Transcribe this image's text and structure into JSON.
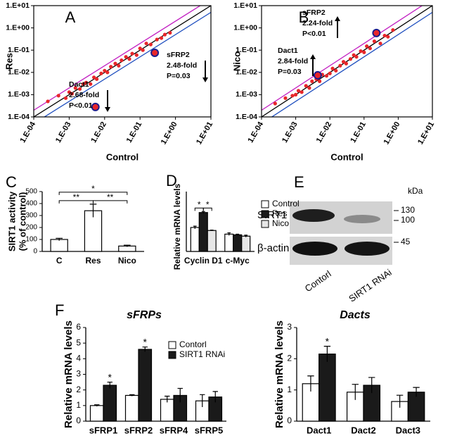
{
  "chart_data": [
    {
      "type": "scatter",
      "label": "A",
      "xlabel": "Control",
      "ylabel": "Res",
      "xscale": "log",
      "yscale": "log",
      "xlim": [
        0.0001,
        10
      ],
      "ylim": [
        0.0001,
        10
      ],
      "xticks": [
        {
          "value": 0.0001,
          "label": "1.E-04"
        },
        {
          "value": 0.001,
          "label": "1.E-03"
        },
        {
          "value": 0.01,
          "label": "1.E-02"
        },
        {
          "value": 0.1,
          "label": "1.E-01"
        },
        {
          "value": 1,
          "label": "1.E+00"
        },
        {
          "value": 10,
          "label": "1.E+01"
        }
      ],
      "yticks": [
        {
          "value": 0.0001,
          "label": "1.E-04"
        },
        {
          "value": 0.001,
          "label": "1.E-03"
        },
        {
          "value": 0.01,
          "label": "1.E-02"
        },
        {
          "value": 0.1,
          "label": "1.E-01"
        },
        {
          "value": 1,
          "label": "1.E+00"
        },
        {
          "value": 10,
          "label": "1.E+01"
        }
      ],
      "x": [
        0.00025,
        0.0005,
        0.0008,
        0.001,
        0.0012,
        0.0015,
        0.002,
        0.0025,
        0.003,
        0.004,
        0.005,
        0.006,
        0.008,
        0.01,
        0.012,
        0.015,
        0.02,
        0.025,
        0.03,
        0.04,
        0.05,
        0.06,
        0.08,
        0.1,
        0.12,
        0.15,
        0.2,
        0.3,
        0.4,
        0.5,
        0.7
      ],
      "y": [
        0.0005,
        0.0009,
        0.0007,
        0.0013,
        0.0011,
        0.002,
        0.0018,
        0.003,
        0.0035,
        0.003,
        0.006,
        0.005,
        0.009,
        0.012,
        0.01,
        0.018,
        0.025,
        0.02,
        0.035,
        0.05,
        0.04,
        0.07,
        0.06,
        0.12,
        0.1,
        0.2,
        0.18,
        0.3,
        0.35,
        0.5,
        0.6
      ],
      "color": "#e8262a",
      "highlighted": {
        "x": [
          0.0055,
          0.26
        ],
        "y": [
          0.00028,
          0.076
        ],
        "color": "#1c1c8c"
      },
      "fold_lines": [
        {
          "fold": 2,
          "color": "#c21fc2"
        },
        {
          "fold": 1,
          "color": "#000000"
        },
        {
          "fold": 0.5,
          "color": "#1f4fbf"
        }
      ],
      "annotations": [
        {
          "lines": [
            "Dact1",
            "2.68-fold",
            "P<0.01"
          ],
          "arrow": "down"
        },
        {
          "lines": [
            "sFRP2",
            "2.48-fold",
            "P=0.03"
          ],
          "arrow": "down"
        }
      ]
    },
    {
      "type": "scatter",
      "label": "B",
      "xlabel": "Control",
      "ylabel": "Nico",
      "xscale": "log",
      "yscale": "log",
      "xlim": [
        0.0001,
        10
      ],
      "ylim": [
        0.0001,
        10
      ],
      "xticks": [
        {
          "value": 0.0001,
          "label": "1.E-04"
        },
        {
          "value": 0.001,
          "label": "1.E-03"
        },
        {
          "value": 0.01,
          "label": "1.E-02"
        },
        {
          "value": 0.1,
          "label": "1.E-01"
        },
        {
          "value": 1,
          "label": "1.E+00"
        },
        {
          "value": 10,
          "label": "1.E+01"
        }
      ],
      "yticks": [
        {
          "value": 0.0001,
          "label": "1.E-04"
        },
        {
          "value": 0.001,
          "label": "1.E-03"
        },
        {
          "value": 0.01,
          "label": "1.E-02"
        },
        {
          "value": 0.1,
          "label": "1.E-01"
        },
        {
          "value": 1,
          "label": "1.E+00"
        },
        {
          "value": 10,
          "label": "1.E+01"
        }
      ],
      "x": [
        0.00025,
        0.0005,
        0.0008,
        0.001,
        0.0012,
        0.0015,
        0.002,
        0.0025,
        0.003,
        0.004,
        0.005,
        0.006,
        0.008,
        0.01,
        0.012,
        0.015,
        0.02,
        0.025,
        0.03,
        0.04,
        0.05,
        0.06,
        0.08,
        0.1,
        0.12,
        0.15,
        0.2,
        0.3,
        0.4,
        0.5,
        0.7
      ],
      "y": [
        0.0004,
        0.0007,
        0.0009,
        0.001,
        0.0015,
        0.0013,
        0.0025,
        0.002,
        0.004,
        0.005,
        0.004,
        0.008,
        0.007,
        0.009,
        0.015,
        0.012,
        0.02,
        0.03,
        0.025,
        0.04,
        0.06,
        0.05,
        0.09,
        0.08,
        0.15,
        0.12,
        0.25,
        0.2,
        0.45,
        0.4,
        0.8
      ],
      "color": "#e8262a",
      "highlighted": {
        "x": [
          0.0044,
          0.23
        ],
        "y": [
          0.0074,
          0.59
        ],
        "color": "#1c1c8c"
      },
      "fold_lines": [
        {
          "fold": 2,
          "color": "#c21fc2"
        },
        {
          "fold": 1,
          "color": "#000000"
        },
        {
          "fold": 0.5,
          "color": "#1f4fbf"
        }
      ],
      "annotations": [
        {
          "lines": [
            "sFRP2",
            "2.24-fold",
            "P<0.01"
          ],
          "arrow": "up"
        },
        {
          "lines": [
            "Dact1",
            "2.84-fold",
            "P=0.03"
          ],
          "arrow": "up"
        }
      ]
    },
    {
      "type": "bar",
      "label": "C",
      "ylabel": [
        "SIRT1 activity",
        "(% of control)"
      ],
      "categories": [
        "C",
        "Res",
        "Nico"
      ],
      "values": [
        100,
        340,
        45
      ],
      "errors": [
        10,
        55,
        7
      ],
      "color": "#ffffff",
      "ylim": [
        0,
        500
      ],
      "yticks": [
        0,
        100,
        200,
        300,
        400,
        500
      ],
      "comparisons": [
        {
          "from": "C",
          "to": "Nico",
          "text": "*"
        },
        {
          "from": "C",
          "to": "Res",
          "text": "**"
        },
        {
          "from": "Res",
          "to": "Nico",
          "text": "**"
        }
      ]
    },
    {
      "type": "bar",
      "label": "D",
      "ylabel": "Relative mRNA levels",
      "categories": [
        "Cyclin D1",
        "c-Myc"
      ],
      "series": [
        {
          "name": "Control",
          "color": "#ffffff",
          "values": [
            3.6,
            2.6
          ],
          "errors": [
            0.2,
            0.2
          ]
        },
        {
          "name": "Res",
          "color": "#1a1a1a",
          "values": [
            5.85,
            2.5
          ],
          "errors": [
            0.15,
            0.1
          ]
        },
        {
          "name": "Nico",
          "color": "#e6e6e6",
          "values": [
            3.15,
            2.3
          ],
          "errors": [
            0.05,
            0.15
          ]
        }
      ],
      "ylim": [
        0,
        9
      ],
      "legend": "right",
      "comparisons": [
        {
          "category": "Cyclin D1",
          "from": "Control",
          "to": "Res",
          "text": "*"
        },
        {
          "category": "Cyclin D1",
          "from": "Res",
          "to": "Nico",
          "text": "*"
        }
      ]
    },
    {
      "type": "bar",
      "label": "F",
      "title": "sFRPs",
      "ylabel": "Relative mRNA levels",
      "categories": [
        "sFRP1",
        "sFRP2",
        "sFRP4",
        "sFRP5"
      ],
      "series": [
        {
          "name": "Contorl",
          "color": "#ffffff",
          "values": [
            1.0,
            1.65,
            1.4,
            1.3
          ],
          "errors": [
            0.05,
            0.05,
            0.2,
            0.4
          ]
        },
        {
          "name": "SIRT1 RNAi",
          "color": "#1a1a1a",
          "values": [
            2.3,
            4.6,
            1.65,
            1.55
          ],
          "errors": [
            0.2,
            0.15,
            0.45,
            0.35
          ]
        }
      ],
      "ylim": [
        0,
        6
      ],
      "yticks": [
        0,
        1,
        2,
        3,
        4,
        5,
        6
      ],
      "legend": "top",
      "annotations": [
        {
          "text": "*",
          "category": "sFRP1",
          "series": "SIRT1 RNAi"
        },
        {
          "text": "*",
          "category": "sFRP2",
          "series": "SIRT1 RNAi"
        }
      ]
    },
    {
      "type": "bar",
      "title": "Dacts",
      "ylabel": "Relative mRNA levels",
      "categories": [
        "Dact1",
        "Dact2",
        "Dact3"
      ],
      "series": [
        {
          "name": "Contorl",
          "color": "#ffffff",
          "values": [
            1.2,
            0.93,
            0.63
          ],
          "errors": [
            0.25,
            0.25,
            0.2
          ]
        },
        {
          "name": "SIRT1 RNAi",
          "color": "#1a1a1a",
          "values": [
            2.15,
            1.15,
            0.93
          ],
          "errors": [
            0.25,
            0.25,
            0.15
          ]
        }
      ],
      "ylim": [
        0,
        3
      ],
      "yticks": [
        0,
        1,
        2,
        3
      ],
      "annotations": [
        {
          "text": "*",
          "category": "Dact1",
          "series": "SIRT1 RNAi"
        }
      ]
    }
  ],
  "blot": {
    "label": "E",
    "unit": "kDa",
    "markers": [
      130,
      100,
      45
    ],
    "bands": [
      "SIRT1",
      "β-actin"
    ],
    "lanes": [
      "Contorl",
      "SIRT1 RNAi"
    ]
  }
}
